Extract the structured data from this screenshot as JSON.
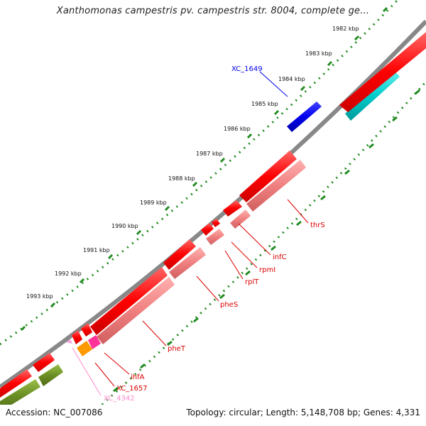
{
  "title": "Xanthomonas campestris pv. campestris str. 8004, complete ge...",
  "accession": "Accession: NC_007086",
  "summary": "Topology: circular; Length: 5,148,708 bp; Genes: 4,331",
  "ticks": [
    "1982 kbp",
    "1983 kbp",
    "1984 kbp",
    "1985 kbp",
    "1986 kbp",
    "1987 kbp",
    "1988 kbp",
    "1989 kbp",
    "1990 kbp",
    "1991 kbp",
    "1992 kbp",
    "1993 kbp"
  ],
  "gene_labels": {
    "xc1649": "XC_1649",
    "thrs": "thrS",
    "infc": "infC",
    "rpmi": "rpmI",
    "rplt": "rplT",
    "phes": "pheS",
    "phet": "pheT",
    "ihfa": "ihfA",
    "xc1657": "XC_1657",
    "xc4342": "XC_4342"
  },
  "colors": {
    "backbone": "#888888",
    "forward_cds": "#ff0000",
    "reverse_cds": "#f08080",
    "misc_blue": "#0000ee",
    "misc_cyan": "#00cccc",
    "misc_olive": "#6b8e23",
    "misc_orange": "#ff9900",
    "misc_magenta": "#ff3399",
    "tick_dots": "#228b22"
  }
}
